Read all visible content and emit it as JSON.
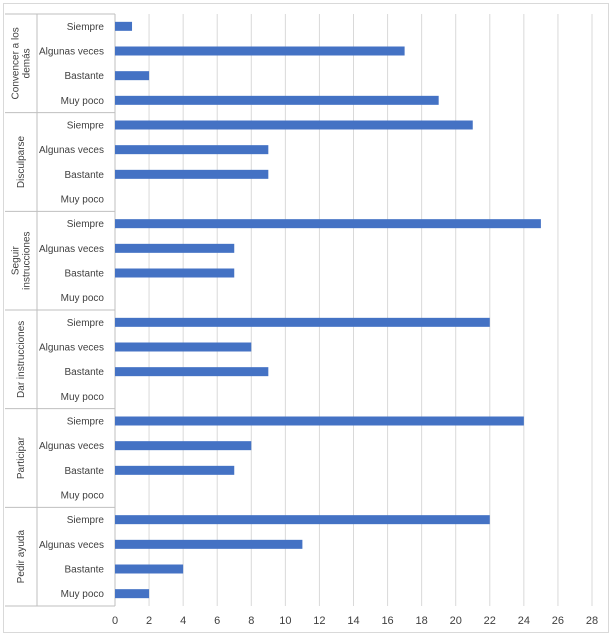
{
  "chart_data": {
    "type": "bar",
    "orientation": "horizontal",
    "xlim": [
      0,
      28
    ],
    "x_ticks": [
      0,
      2,
      4,
      6,
      8,
      10,
      12,
      14,
      16,
      18,
      20,
      22,
      24,
      26,
      28
    ],
    "grid": "vertical",
    "bar_color": "#4472c4",
    "groups": [
      {
        "label": "Convencer a los demás",
        "categories": [
          "Siempre",
          "Algunas veces",
          "Bastante",
          "Muy poco"
        ],
        "values": [
          1,
          17,
          2,
          19
        ]
      },
      {
        "label": "Disculparse",
        "categories": [
          "Siempre",
          "Algunas veces",
          "Bastante",
          "Muy poco"
        ],
        "values": [
          21,
          9,
          9,
          0
        ]
      },
      {
        "label": "Seguir instrucciones",
        "categories": [
          "Siempre",
          "Algunas veces",
          "Bastante",
          "Muy poco"
        ],
        "values": [
          25,
          7,
          7,
          0
        ]
      },
      {
        "label": "Dar instrucciones",
        "categories": [
          "Siempre",
          "Algunas veces",
          "Bastante",
          "Muy poco"
        ],
        "values": [
          22,
          8,
          9,
          0
        ]
      },
      {
        "label": "Participar",
        "categories": [
          "Siempre",
          "Algunas veces",
          "Bastante",
          "Muy poco"
        ],
        "values": [
          24,
          8,
          7,
          0
        ]
      },
      {
        "label": "Pedir ayuda",
        "categories": [
          "Siempre",
          "Algunas veces",
          "Bastante",
          "Muy poco"
        ],
        "values": [
          22,
          11,
          4,
          2
        ]
      }
    ]
  }
}
